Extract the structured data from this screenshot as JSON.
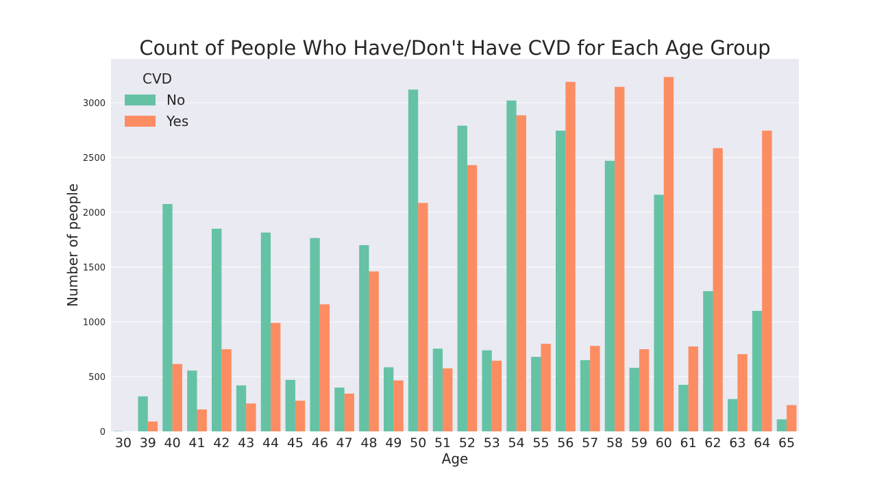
{
  "chart_data": {
    "type": "bar",
    "title": "Count of People Who Have/Don't Have CVD for Each Age Group",
    "xlabel": "Age",
    "ylabel": "Number of people",
    "ylim": [
      0,
      3400
    ],
    "yticks": [
      0,
      500,
      1000,
      1500,
      2000,
      2500,
      3000
    ],
    "grid": true,
    "legend": {
      "title": "CVD",
      "placement": "top-left"
    },
    "categories": [
      "30",
      "39",
      "40",
      "41",
      "42",
      "43",
      "44",
      "45",
      "46",
      "47",
      "48",
      "49",
      "50",
      "51",
      "52",
      "53",
      "54",
      "55",
      "56",
      "57",
      "58",
      "59",
      "60",
      "61",
      "62",
      "63",
      "64",
      "65"
    ],
    "series": [
      {
        "name": "No",
        "color": "#66c2a5",
        "values": [
          3,
          320,
          2075,
          555,
          1850,
          420,
          1815,
          470,
          1765,
          400,
          1700,
          585,
          3120,
          755,
          2790,
          740,
          3020,
          680,
          2745,
          650,
          2470,
          580,
          2160,
          425,
          1280,
          295,
          1100,
          110
        ]
      },
      {
        "name": "Yes",
        "color": "#fc8d62",
        "values": [
          0,
          90,
          615,
          200,
          750,
          255,
          990,
          280,
          1160,
          345,
          1460,
          465,
          2085,
          575,
          2430,
          645,
          2885,
          800,
          3190,
          780,
          3145,
          750,
          3235,
          775,
          2585,
          705,
          2745,
          240
        ]
      }
    ]
  },
  "colors": {
    "plot_background": "#eaeaf2",
    "grid": "#ffffff",
    "text": "#262626"
  }
}
